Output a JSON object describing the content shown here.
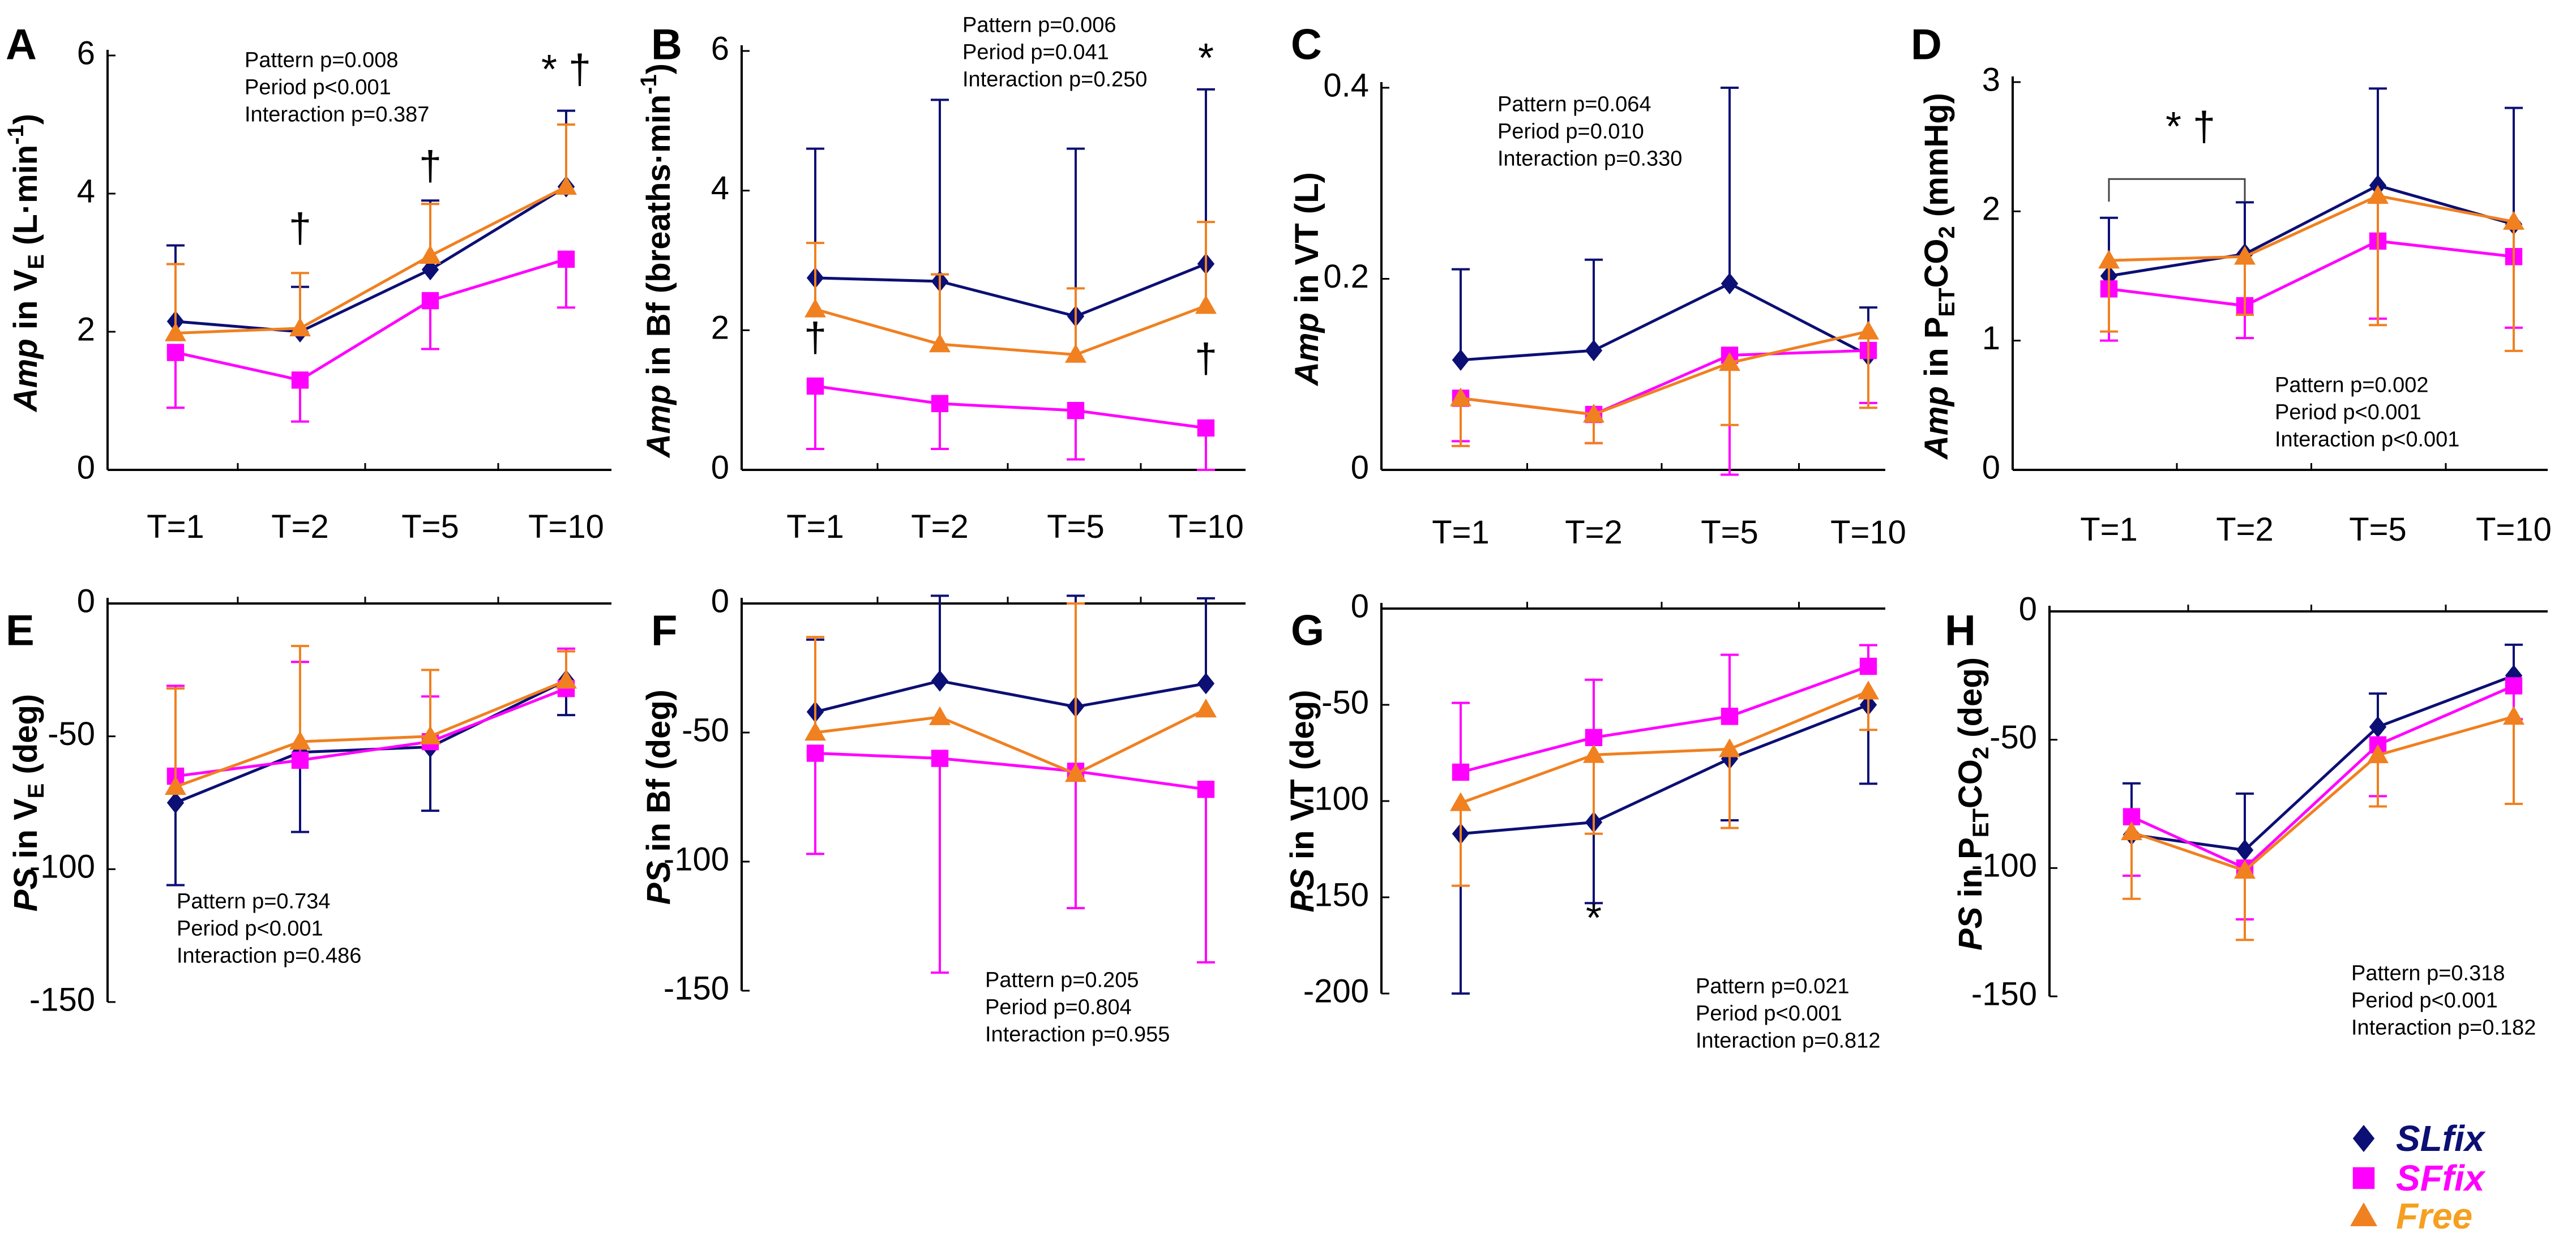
{
  "colors": {
    "SLfix": "#0c0f73",
    "SFfix": "#ff00ff",
    "Free": "#f08020",
    "axis": "#000000"
  },
  "legend": [
    {
      "key": "SLfix",
      "label": "SLfix",
      "marker": "diamond",
      "text_color": "#0c0f73"
    },
    {
      "key": "SFfix",
      "label": "SFfix",
      "marker": "square",
      "text_color": "#ff00ff"
    },
    {
      "key": "Free",
      "label": "Free",
      "marker": "triangle",
      "text_color": "#f5a020"
    }
  ],
  "chart_data": [
    {
      "id": "A",
      "letter": "A",
      "type": "line",
      "ylabel": {
        "prefix": "Amp",
        "mid": " in V",
        "sub": "E",
        "tail": " (L·min",
        "sup": "-1",
        "end": ")"
      },
      "categories": [
        "T=1",
        "T=2",
        "T=5",
        "T=10"
      ],
      "ylim": [
        0,
        6
      ],
      "yticks": [
        0,
        2,
        4,
        6
      ],
      "xaxis": "bottom",
      "series": [
        {
          "name": "SLfix",
          "values": [
            2.15,
            2.0,
            2.9,
            4.1
          ],
          "err": [
            1.1,
            0.65,
            1.0,
            1.1
          ],
          "err_dir": "up"
        },
        {
          "name": "SFfix",
          "values": [
            1.7,
            1.3,
            2.45,
            3.05
          ],
          "err": [
            0.8,
            0.6,
            0.7,
            0.7
          ],
          "err_dir": "down"
        },
        {
          "name": "Free",
          "values": [
            1.98,
            2.05,
            3.1,
            4.1
          ],
          "err": [
            1.0,
            0.8,
            0.75,
            0.9
          ],
          "err_dir": "up"
        }
      ],
      "stats": [
        "Pattern p=0.008",
        "Period  p<0.001",
        "Interaction p=0.387"
      ],
      "annotations": [
        {
          "text": "†",
          "cat": 1,
          "y": 3.3
        },
        {
          "text": "†",
          "cat": 2,
          "y": 4.2
        },
        {
          "text": "* †",
          "cat": 3,
          "y": 5.6
        }
      ]
    },
    {
      "id": "B",
      "letter": "B",
      "type": "line",
      "ylabel": {
        "prefix": "Amp",
        "mid": " in Bf (breaths·min",
        "sup": "-1",
        "end": ")"
      },
      "categories": [
        "T=1",
        "T=2",
        "T=5",
        "T=10"
      ],
      "ylim": [
        0,
        6
      ],
      "yticks": [
        0,
        2,
        4,
        6
      ],
      "xaxis": "bottom",
      "series": [
        {
          "name": "SLfix",
          "values": [
            2.75,
            2.7,
            2.2,
            2.95
          ],
          "err": [
            1.85,
            2.6,
            2.4,
            2.5
          ],
          "err_dir": "up"
        },
        {
          "name": "SFfix",
          "values": [
            1.2,
            0.95,
            0.85,
            0.6
          ],
          "err": [
            0.9,
            0.65,
            0.7,
            0.6
          ],
          "err_dir": "down"
        },
        {
          "name": "Free",
          "values": [
            2.3,
            1.8,
            1.65,
            2.35
          ],
          "err": [
            0.95,
            1.0,
            0.95,
            1.2
          ],
          "err_dir": "up"
        }
      ],
      "stats": [
        "Pattern p=0.006",
        "Period  p=0.041",
        "Interaction p=0.250"
      ],
      "annotations": [
        {
          "text": "†",
          "cat": 0,
          "y": 1.7
        },
        {
          "text": "*",
          "cat": 3,
          "y": 5.7
        },
        {
          "text": "†",
          "cat": 3,
          "y": 1.4
        }
      ]
    },
    {
      "id": "C",
      "letter": "C",
      "type": "line",
      "ylabel": {
        "prefix": "Amp",
        "mid": " in VT (L)"
      },
      "categories": [
        "T=1",
        "T=2",
        "T=5",
        "T=10"
      ],
      "ylim": [
        0,
        0.4
      ],
      "yticks": [
        0,
        0.2,
        0.4
      ],
      "xaxis": "bottom",
      "series": [
        {
          "name": "SLfix",
          "values": [
            0.115,
            0.125,
            0.195,
            0.12
          ],
          "err": [
            0.095,
            0.095,
            0.205,
            0.05
          ],
          "err_dir": "up"
        },
        {
          "name": "SFfix",
          "values": [
            0.075,
            0.058,
            0.12,
            0.125
          ],
          "err": [
            0.045,
            0.03,
            0.125,
            0.055
          ],
          "err_dir": "down"
        },
        {
          "name": "Free",
          "values": [
            0.075,
            0.058,
            0.112,
            0.145
          ],
          "err": [
            0.05,
            0.03,
            0.065,
            0.08
          ],
          "err_dir": "down"
        }
      ],
      "stats": [
        "Pattern p=0.064",
        "Period  p=0.010",
        "Interaction p=0.330"
      ],
      "annotations": []
    },
    {
      "id": "D",
      "letter": "D",
      "type": "line",
      "ylabel": {
        "prefix": "Amp",
        "mid": " in P",
        "sub": "ET",
        "tail": "CO",
        "sub2": "2",
        "end": " (mmHg)"
      },
      "categories": [
        "T=1",
        "T=2",
        "T=5",
        "T=10"
      ],
      "ylim": [
        0,
        3
      ],
      "yticks": [
        0,
        1,
        2,
        3
      ],
      "xaxis": "bottom",
      "series": [
        {
          "name": "SLfix",
          "values": [
            1.5,
            1.67,
            2.2,
            1.9
          ],
          "err": [
            0.45,
            0.4,
            0.75,
            0.9
          ],
          "err_dir": "up"
        },
        {
          "name": "SFfix",
          "values": [
            1.4,
            1.27,
            1.77,
            1.65
          ],
          "err": [
            0.4,
            0.25,
            0.6,
            0.55
          ],
          "err_dir": "down"
        },
        {
          "name": "Free",
          "values": [
            1.62,
            1.65,
            2.12,
            1.92
          ],
          "err": [
            0.55,
            0.45,
            1.0,
            1.0
          ],
          "err_dir": "down"
        }
      ],
      "stats": [
        "Pattern p=0.002",
        "Period  p<0.001",
        "Interaction p<0.001"
      ],
      "annotations": [
        {
          "text": "* †",
          "cat": 0.6,
          "y": 2.55
        }
      ],
      "bracket": {
        "from": 0,
        "to": 1,
        "y": 2.25
      }
    },
    {
      "id": "E",
      "letter": "E",
      "type": "line",
      "ylabel": {
        "prefix": "PS",
        "mid": " in V",
        "sub": "E",
        "end": " (deg)"
      },
      "categories": [
        "T=1",
        "T=2",
        "T=5",
        "T=10"
      ],
      "ylim": [
        -150,
        0
      ],
      "yticks": [
        0,
        -50,
        -100,
        -150
      ],
      "xaxis": "top",
      "series": [
        {
          "name": "SLfix",
          "values": [
            -75,
            -56,
            -54,
            -29
          ],
          "err": [
            31,
            30,
            24,
            13
          ],
          "err_dir": "down"
        },
        {
          "name": "SFfix",
          "values": [
            -65,
            -59,
            -52,
            -32
          ],
          "err": [
            34,
            37,
            17,
            15
          ],
          "err_dir": "up"
        },
        {
          "name": "Free",
          "values": [
            -69,
            -52,
            -50,
            -29
          ],
          "err": [
            37,
            36,
            25,
            11
          ],
          "err_dir": "up"
        }
      ],
      "stats": [
        "Pattern p=0.734",
        "Period  p<0.001",
        "Interaction p=0.486"
      ],
      "annotations": []
    },
    {
      "id": "F",
      "letter": "F",
      "type": "line",
      "ylabel": {
        "prefix": "PS",
        "mid": " in Bf (deg)"
      },
      "categories": [
        "T=1",
        "T=2",
        "T=5",
        "T=10"
      ],
      "ylim": [
        -150,
        0
      ],
      "yticks": [
        0,
        -50,
        -100,
        -150
      ],
      "xaxis": "top",
      "series": [
        {
          "name": "SLfix",
          "values": [
            -42,
            -30,
            -40,
            -31
          ],
          "err": [
            28,
            33,
            43,
            33
          ],
          "err_dir": "up"
        },
        {
          "name": "SFfix",
          "values": [
            -58,
            -60,
            -65,
            -72
          ],
          "err": [
            39,
            83,
            53,
            67
          ],
          "err_dir": "down"
        },
        {
          "name": "Free",
          "values": [
            -50,
            -44,
            -66,
            -41
          ],
          "err": [
            37,
            0,
            66,
            0
          ],
          "err_dir": "up"
        }
      ],
      "stats": [
        "Pattern p=0.205",
        "Period  p=0.804",
        "Interaction p=0.955"
      ],
      "annotations": []
    },
    {
      "id": "G",
      "letter": "G",
      "type": "line",
      "ylabel": {
        "prefix": "PS",
        "mid": " in VT (deg)"
      },
      "categories": [
        "T=1",
        "T=2",
        "T=5",
        "T=10"
      ],
      "ylim": [
        -200,
        0
      ],
      "yticks": [
        0,
        -50,
        -100,
        -150,
        -200
      ],
      "xaxis": "top",
      "series": [
        {
          "name": "SLfix",
          "values": [
            -117,
            -111,
            -78,
            -50
          ],
          "err": [
            83,
            42,
            32,
            41
          ],
          "err_dir": "down"
        },
        {
          "name": "SFfix",
          "values": [
            -85,
            -67,
            -56,
            -30
          ],
          "err": [
            36,
            30,
            32,
            11
          ],
          "err_dir": "up"
        },
        {
          "name": "Free",
          "values": [
            -101,
            -76,
            -73,
            -43
          ],
          "err": [
            43,
            41,
            41,
            20
          ],
          "err_dir": "down"
        }
      ],
      "stats": [
        "Pattern p=0.021",
        "Period  p<0.001",
        "Interaction p=0.812"
      ],
      "annotations": [
        {
          "text": "*",
          "cat": 1,
          "y": -168
        }
      ]
    },
    {
      "id": "H",
      "letter": "H",
      "type": "line",
      "ylabel": {
        "prefix": "PS",
        "mid": " in  P",
        "sub": "ET",
        "tail": "CO",
        "sub2": "2",
        "end": " (deg)"
      },
      "categories": [
        "T=1",
        "T=2",
        "T=5",
        "T=10"
      ],
      "ylim": [
        -150,
        0
      ],
      "yticks": [
        0,
        -50,
        -100,
        -150
      ],
      "xaxis": "top",
      "series": [
        {
          "name": "SLfix",
          "values": [
            -87,
            -93,
            -45,
            -25
          ],
          "err": [
            20,
            22,
            13,
            12
          ],
          "err_dir": "up"
        },
        {
          "name": "SFfix",
          "values": [
            -80,
            -100,
            -52,
            -29
          ],
          "err": [
            23,
            20,
            20,
            13
          ],
          "err_dir": "down"
        },
        {
          "name": "Free",
          "values": [
            -86,
            -101,
            -56,
            -41
          ],
          "err": [
            26,
            27,
            20,
            34
          ],
          "err_dir": "down"
        }
      ],
      "stats": [
        "Pattern p=0.318",
        "Period  p<0.001",
        "Interaction p=0.182"
      ],
      "annotations": []
    }
  ]
}
